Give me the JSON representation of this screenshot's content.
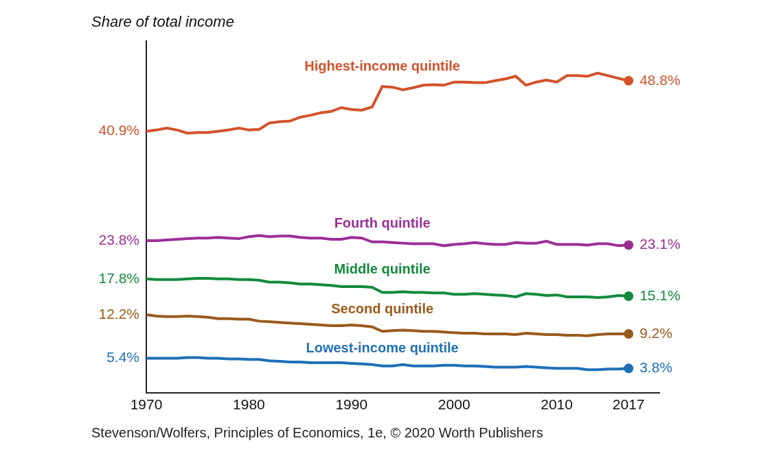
{
  "chart_data": {
    "type": "line",
    "ylabel": "Share of total income",
    "source": "Stevenson/Wolfers, Principles of Economics, 1e, © 2020 Worth Publishers",
    "x": [
      1970,
      1971,
      1972,
      1973,
      1974,
      1975,
      1976,
      1977,
      1978,
      1979,
      1980,
      1981,
      1982,
      1983,
      1984,
      1985,
      1986,
      1987,
      1988,
      1989,
      1990,
      1991,
      1992,
      1993,
      1994,
      1995,
      1996,
      1997,
      1998,
      1999,
      2000,
      2001,
      2002,
      2003,
      2004,
      2005,
      2006,
      2007,
      2008,
      2009,
      2010,
      2011,
      2012,
      2013,
      2014,
      2015,
      2016,
      2017
    ],
    "xlim": [
      1970,
      2020
    ],
    "xticks": [
      1970,
      1980,
      1990,
      2000,
      2010,
      2017
    ],
    "ylim": [
      0,
      55
    ],
    "yticks": [],
    "tick_labels": "x",
    "grid": false,
    "data_labels": true,
    "series": [
      {
        "name": "Highest-income quintile",
        "color": "#d2522a",
        "values": [
          40.9,
          41.1,
          41.4,
          41.1,
          40.6,
          40.7,
          40.7,
          40.9,
          41.1,
          41.4,
          41.1,
          41.2,
          42.2,
          42.4,
          42.5,
          43.1,
          43.4,
          43.8,
          44.0,
          44.6,
          44.3,
          44.2,
          44.7,
          47.9,
          47.8,
          47.4,
          47.7,
          48.1,
          48.2,
          48.1,
          48.6,
          48.6,
          48.5,
          48.5,
          48.8,
          49.1,
          49.5,
          48.1,
          48.6,
          48.9,
          48.6,
          49.6,
          49.6,
          49.5,
          50.0,
          49.6,
          49.2,
          48.8
        ],
        "value_labels": [
          "40.9%",
          null,
          null,
          null,
          null,
          null,
          null,
          null,
          null,
          null,
          null,
          null,
          null,
          null,
          null,
          null,
          null,
          null,
          null,
          null,
          null,
          null,
          null,
          null,
          null,
          null,
          null,
          null,
          null,
          null,
          null,
          null,
          null,
          null,
          null,
          null,
          null,
          null,
          null,
          null,
          null,
          null,
          null,
          null,
          null,
          null,
          null,
          "48.8%"
        ]
      },
      {
        "name": "Fourth quintile",
        "color": "#9b2f95",
        "values": [
          23.8,
          23.8,
          23.9,
          24.0,
          24.1,
          24.2,
          24.2,
          24.3,
          24.2,
          24.1,
          24.4,
          24.6,
          24.4,
          24.5,
          24.5,
          24.3,
          24.2,
          24.2,
          24.0,
          24.0,
          24.3,
          24.2,
          23.6,
          23.6,
          23.5,
          23.4,
          23.3,
          23.3,
          23.3,
          23.0,
          23.2,
          23.3,
          23.5,
          23.3,
          23.2,
          23.2,
          23.5,
          23.4,
          23.4,
          23.7,
          23.2,
          23.2,
          23.2,
          23.1,
          23.3,
          23.3,
          23.0,
          23.1
        ],
        "value_labels": [
          "23.8%",
          null,
          null,
          null,
          null,
          null,
          null,
          null,
          null,
          null,
          null,
          null,
          null,
          null,
          null,
          null,
          null,
          null,
          null,
          null,
          null,
          null,
          null,
          null,
          null,
          null,
          null,
          null,
          null,
          null,
          null,
          null,
          null,
          null,
          null,
          null,
          null,
          null,
          null,
          null,
          null,
          null,
          null,
          null,
          null,
          null,
          null,
          "23.1%"
        ]
      },
      {
        "name": "Middle quintile",
        "color": "#128a3c",
        "values": [
          17.8,
          17.7,
          17.7,
          17.7,
          17.8,
          17.9,
          17.9,
          17.8,
          17.8,
          17.7,
          17.7,
          17.6,
          17.3,
          17.3,
          17.2,
          17.0,
          17.0,
          16.9,
          16.8,
          16.6,
          16.6,
          16.6,
          16.5,
          15.7,
          15.7,
          15.8,
          15.7,
          15.7,
          15.6,
          15.6,
          15.4,
          15.4,
          15.5,
          15.4,
          15.3,
          15.2,
          15.0,
          15.5,
          15.4,
          15.2,
          15.3,
          15.0,
          15.0,
          15.0,
          14.9,
          15.0,
          15.2,
          15.1
        ],
        "value_labels": [
          "17.8%",
          null,
          null,
          null,
          null,
          null,
          null,
          null,
          null,
          null,
          null,
          null,
          null,
          null,
          null,
          null,
          null,
          null,
          null,
          null,
          null,
          null,
          null,
          null,
          null,
          null,
          null,
          null,
          null,
          null,
          null,
          null,
          null,
          null,
          null,
          null,
          null,
          null,
          null,
          null,
          null,
          null,
          null,
          null,
          null,
          null,
          null,
          "15.1%"
        ]
      },
      {
        "name": "Second quintile",
        "color": "#9a5a1c",
        "values": [
          12.2,
          12.0,
          11.9,
          11.9,
          12.0,
          11.9,
          11.8,
          11.6,
          11.6,
          11.5,
          11.5,
          11.2,
          11.1,
          11.0,
          10.9,
          10.8,
          10.7,
          10.6,
          10.5,
          10.5,
          10.6,
          10.5,
          10.3,
          9.6,
          9.7,
          9.8,
          9.7,
          9.6,
          9.6,
          9.5,
          9.4,
          9.3,
          9.3,
          9.2,
          9.2,
          9.2,
          9.1,
          9.3,
          9.2,
          9.1,
          9.1,
          9.0,
          9.0,
          8.9,
          9.1,
          9.2,
          9.2,
          9.2
        ],
        "value_labels": [
          "12.2%",
          null,
          null,
          null,
          null,
          null,
          null,
          null,
          null,
          null,
          null,
          null,
          null,
          null,
          null,
          null,
          null,
          null,
          null,
          null,
          null,
          null,
          null,
          null,
          null,
          null,
          null,
          null,
          null,
          null,
          null,
          null,
          null,
          null,
          null,
          null,
          null,
          null,
          null,
          null,
          null,
          null,
          null,
          null,
          null,
          null,
          null,
          "9.2%"
        ]
      },
      {
        "name": "Lowest-income quintile",
        "color": "#1f6fb8",
        "values": [
          5.4,
          5.4,
          5.4,
          5.4,
          5.5,
          5.5,
          5.4,
          5.4,
          5.3,
          5.3,
          5.2,
          5.2,
          5.0,
          4.9,
          4.8,
          4.8,
          4.7,
          4.7,
          4.7,
          4.7,
          4.6,
          4.5,
          4.4,
          4.2,
          4.2,
          4.4,
          4.2,
          4.2,
          4.2,
          4.3,
          4.3,
          4.2,
          4.2,
          4.1,
          4.0,
          4.0,
          4.0,
          4.1,
          4.0,
          3.9,
          3.8,
          3.8,
          3.8,
          3.6,
          3.6,
          3.7,
          3.7,
          3.8
        ],
        "value_labels": [
          "5.4%",
          null,
          null,
          null,
          null,
          null,
          null,
          null,
          null,
          null,
          null,
          null,
          null,
          null,
          null,
          null,
          null,
          null,
          null,
          null,
          null,
          null,
          null,
          null,
          null,
          null,
          null,
          null,
          null,
          null,
          null,
          null,
          null,
          null,
          null,
          null,
          null,
          null,
          null,
          null,
          null,
          null,
          null,
          null,
          null,
          null,
          null,
          "3.8%"
        ]
      }
    ]
  }
}
